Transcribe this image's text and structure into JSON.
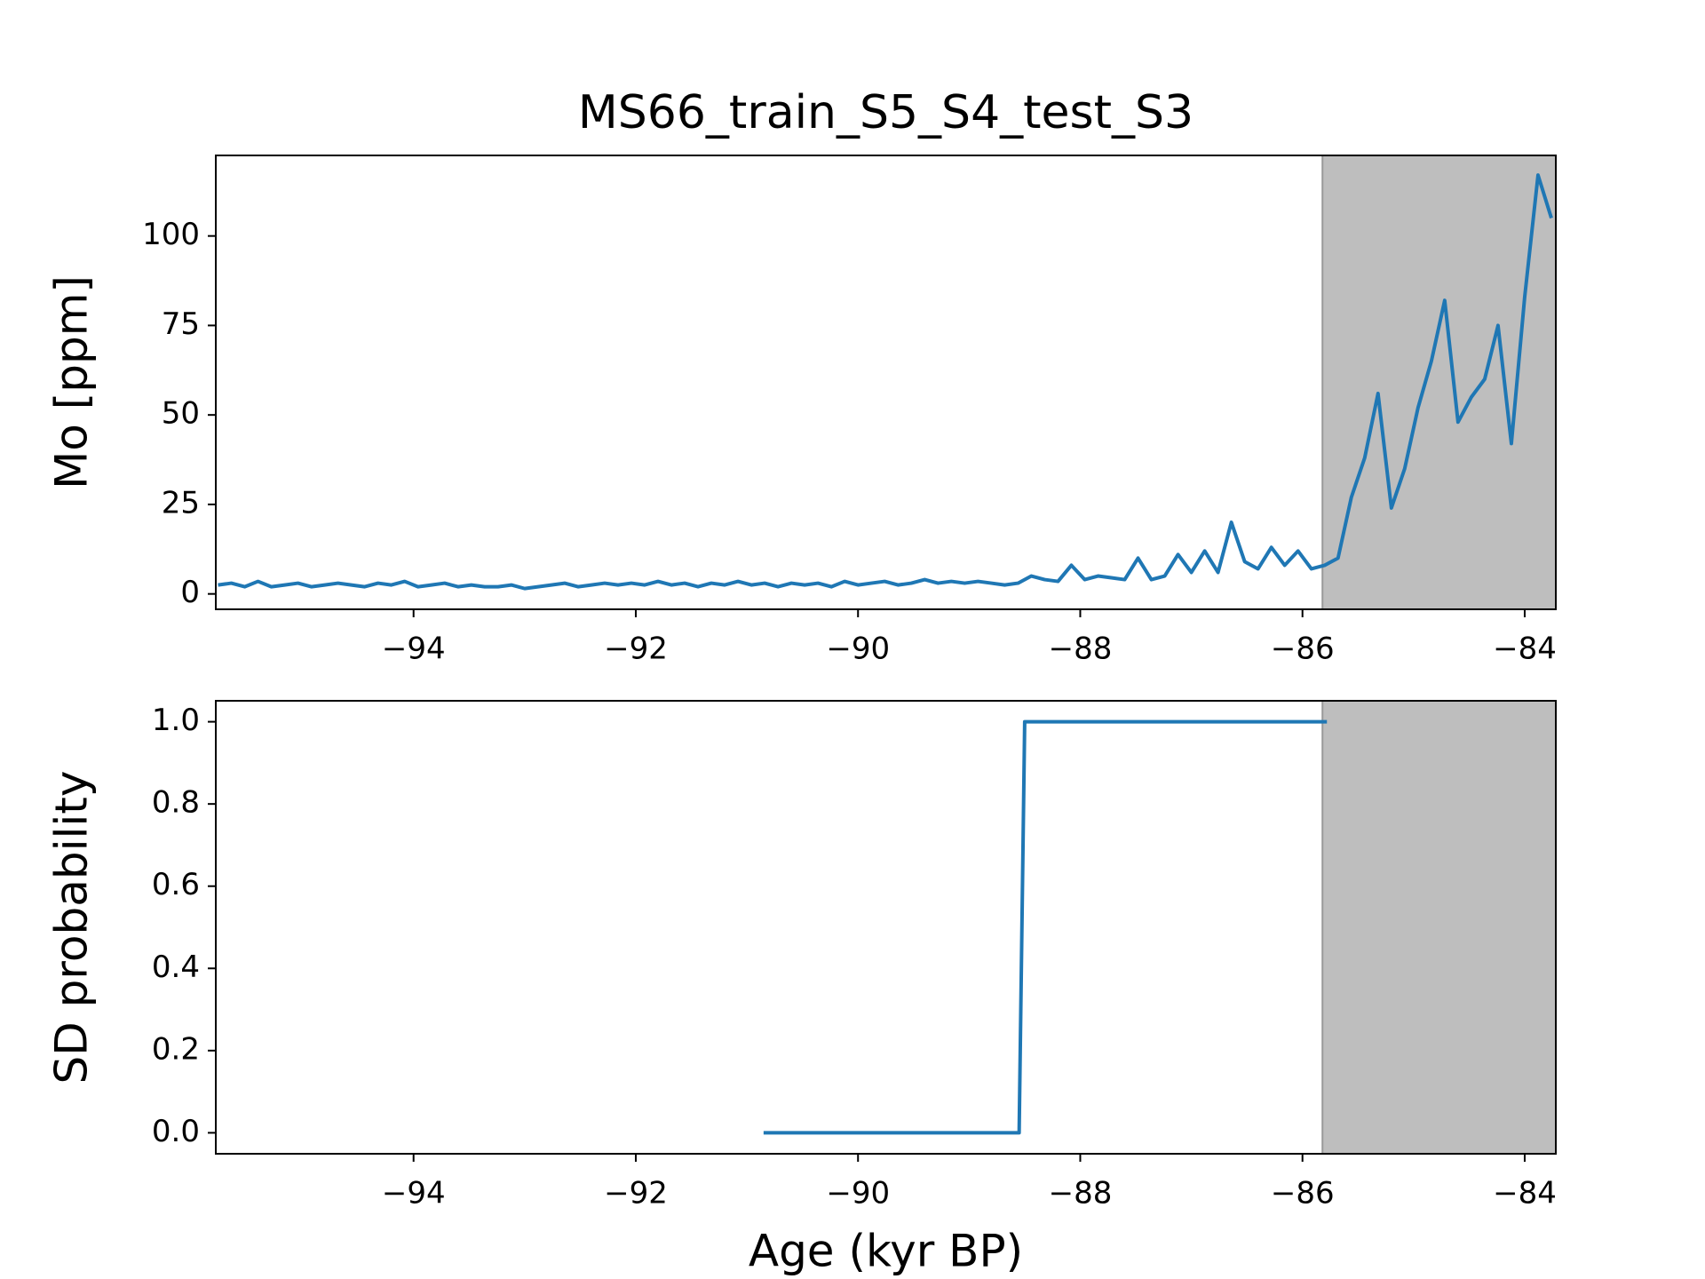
{
  "chart_data": [
    {
      "type": "line",
      "title": "MS66_train_S5_S4_test_S3",
      "ylabel": "Mo [ppm]",
      "x": [
        -95.76,
        -95.64,
        -95.52,
        -95.4,
        -95.28,
        -95.16,
        -95.04,
        -94.92,
        -94.8,
        -94.68,
        -94.56,
        -94.44,
        -94.32,
        -94.2,
        -94.08,
        -93.96,
        -93.84,
        -93.72,
        -93.6,
        -93.48,
        -93.36,
        -93.24,
        -93.12,
        -93,
        -92.88,
        -92.76,
        -92.64,
        -92.52,
        -92.4,
        -92.28,
        -92.16,
        -92.04,
        -91.92,
        -91.8,
        -91.68,
        -91.56,
        -91.44,
        -91.32,
        -91.2,
        -91.08,
        -90.96,
        -90.84,
        -90.72,
        -90.6,
        -90.48,
        -90.36,
        -90.24,
        -90.12,
        -90,
        -89.88,
        -89.76,
        -89.64,
        -89.52,
        -89.4,
        -89.28,
        -89.16,
        -89.04,
        -88.92,
        -88.8,
        -88.68,
        -88.56,
        -88.44,
        -88.32,
        -88.2,
        -88.08,
        -87.96,
        -87.84,
        -87.72,
        -87.6,
        -87.48,
        -87.36,
        -87.24,
        -87.12,
        -87,
        -86.88,
        -86.76,
        -86.64,
        -86.52,
        -86.4,
        -86.28,
        -86.16,
        -86.04,
        -85.92,
        -85.8,
        -85.68,
        -85.56,
        -85.44,
        -85.32,
        -85.2,
        -85.08,
        -84.96,
        -84.84,
        -84.72,
        -84.6,
        -84.48,
        -84.36,
        -84.24,
        -84.12,
        -84,
        -83.88,
        -83.76
      ],
      "series": [
        {
          "color": "#1f77b4",
          "values": [
            2.5,
            3,
            2,
            3.5,
            2,
            2.5,
            3,
            2,
            2.5,
            3,
            2.5,
            2,
            3,
            2.5,
            3.5,
            2,
            2.5,
            3,
            2,
            2.5,
            2,
            2,
            2.5,
            1.5,
            2,
            2.5,
            3,
            2,
            2.5,
            3,
            2.5,
            3,
            2.5,
            3.5,
            2.5,
            3,
            2,
            3,
            2.5,
            3.5,
            2.5,
            3,
            2,
            3,
            2.5,
            3,
            2,
            3.5,
            2.5,
            3,
            3.5,
            2.5,
            3,
            4,
            3,
            3.5,
            3,
            3.5,
            3,
            2.5,
            3,
            5,
            4,
            3.5,
            8,
            4,
            5,
            4.5,
            4,
            10,
            4,
            5,
            11,
            6,
            12,
            6,
            20,
            9,
            7,
            13,
            8,
            12,
            7,
            8,
            10,
            27,
            38,
            56,
            24,
            35,
            52,
            65,
            82,
            48,
            55,
            60,
            75,
            42,
            83,
            117,
            105
          ]
        }
      ],
      "xlim": [
        -95.78,
        -83.72
      ],
      "ylim": [
        -4.3,
        122.5
      ],
      "xticks": [
        {
          "value": -94,
          "label": "−94"
        },
        {
          "value": -92,
          "label": "−92"
        },
        {
          "value": -90,
          "label": "−90"
        },
        {
          "value": -88,
          "label": "−88"
        },
        {
          "value": -86,
          "label": "−86"
        },
        {
          "value": -84,
          "label": "−84"
        }
      ],
      "yticks": [
        0,
        25,
        50,
        75,
        100
      ],
      "shaded_span": {
        "xlim": [
          -85.82,
          -83.72
        ],
        "color": "#bebebe"
      }
    },
    {
      "type": "line",
      "ylabel": "SD probability",
      "xlabel": "Age (kyr BP)",
      "x": [
        -90.85,
        -88.55,
        -88.5,
        -85.78
      ],
      "series": [
        {
          "color": "#1f77b4",
          "values": [
            0,
            0,
            1,
            1
          ]
        }
      ],
      "xlim": [
        -95.78,
        -83.72
      ],
      "ylim": [
        -0.051,
        1.051
      ],
      "xticks": [
        {
          "value": -94,
          "label": "−94"
        },
        {
          "value": -92,
          "label": "−92"
        },
        {
          "value": -90,
          "label": "−90"
        },
        {
          "value": -88,
          "label": "−88"
        },
        {
          "value": -86,
          "label": "−86"
        },
        {
          "value": -84,
          "label": "−84"
        }
      ],
      "yticks": [
        {
          "value": 0,
          "label": "0.0"
        },
        {
          "value": 0.2,
          "label": "0.2"
        },
        {
          "value": 0.4,
          "label": "0.4"
        },
        {
          "value": 0.6,
          "label": "0.6"
        },
        {
          "value": 0.8,
          "label": "0.8"
        },
        {
          "value": 1,
          "label": "1.0"
        }
      ],
      "shaded_span": {
        "xlim": [
          -85.82,
          -83.72
        ],
        "color": "#bebebe"
      }
    }
  ]
}
